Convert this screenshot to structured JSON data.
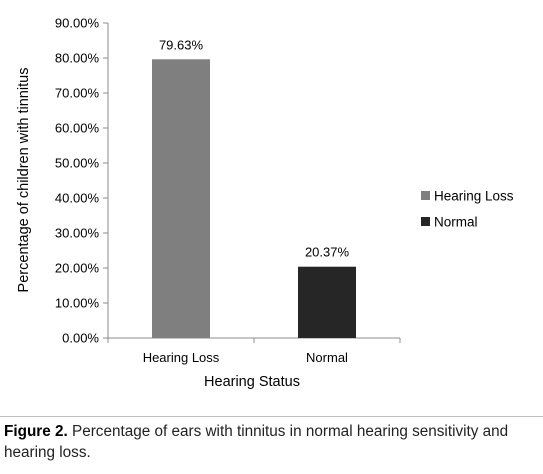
{
  "chart_data": {
    "type": "bar",
    "categories": [
      "Hearing Loss",
      "Normal"
    ],
    "values": [
      79.63,
      20.37
    ],
    "data_labels": [
      "79.63%",
      "20.37%"
    ],
    "series": [
      {
        "name": "Hearing Loss",
        "color": "#7f7f7f"
      },
      {
        "name": "Normal",
        "color": "#262626"
      }
    ],
    "title": "",
    "xlabel": "Hearing Status",
    "ylabel": "Percentage of children with tinnitus",
    "ylim": [
      0,
      90
    ],
    "y_ticks": [
      0,
      10,
      20,
      30,
      40,
      50,
      60,
      70,
      80,
      90
    ],
    "y_tick_labels": [
      "0.00%",
      "10.00%",
      "20.00%",
      "30.00%",
      "40.00%",
      "50.00%",
      "60.00%",
      "70.00%",
      "80.00%",
      "90.00%"
    ],
    "grid": false,
    "legend_position": "right"
  },
  "caption": {
    "label": "Figure 2.",
    "text": " Percentage of ears with tinnitus in normal hearing sensitivity and hearing loss."
  }
}
